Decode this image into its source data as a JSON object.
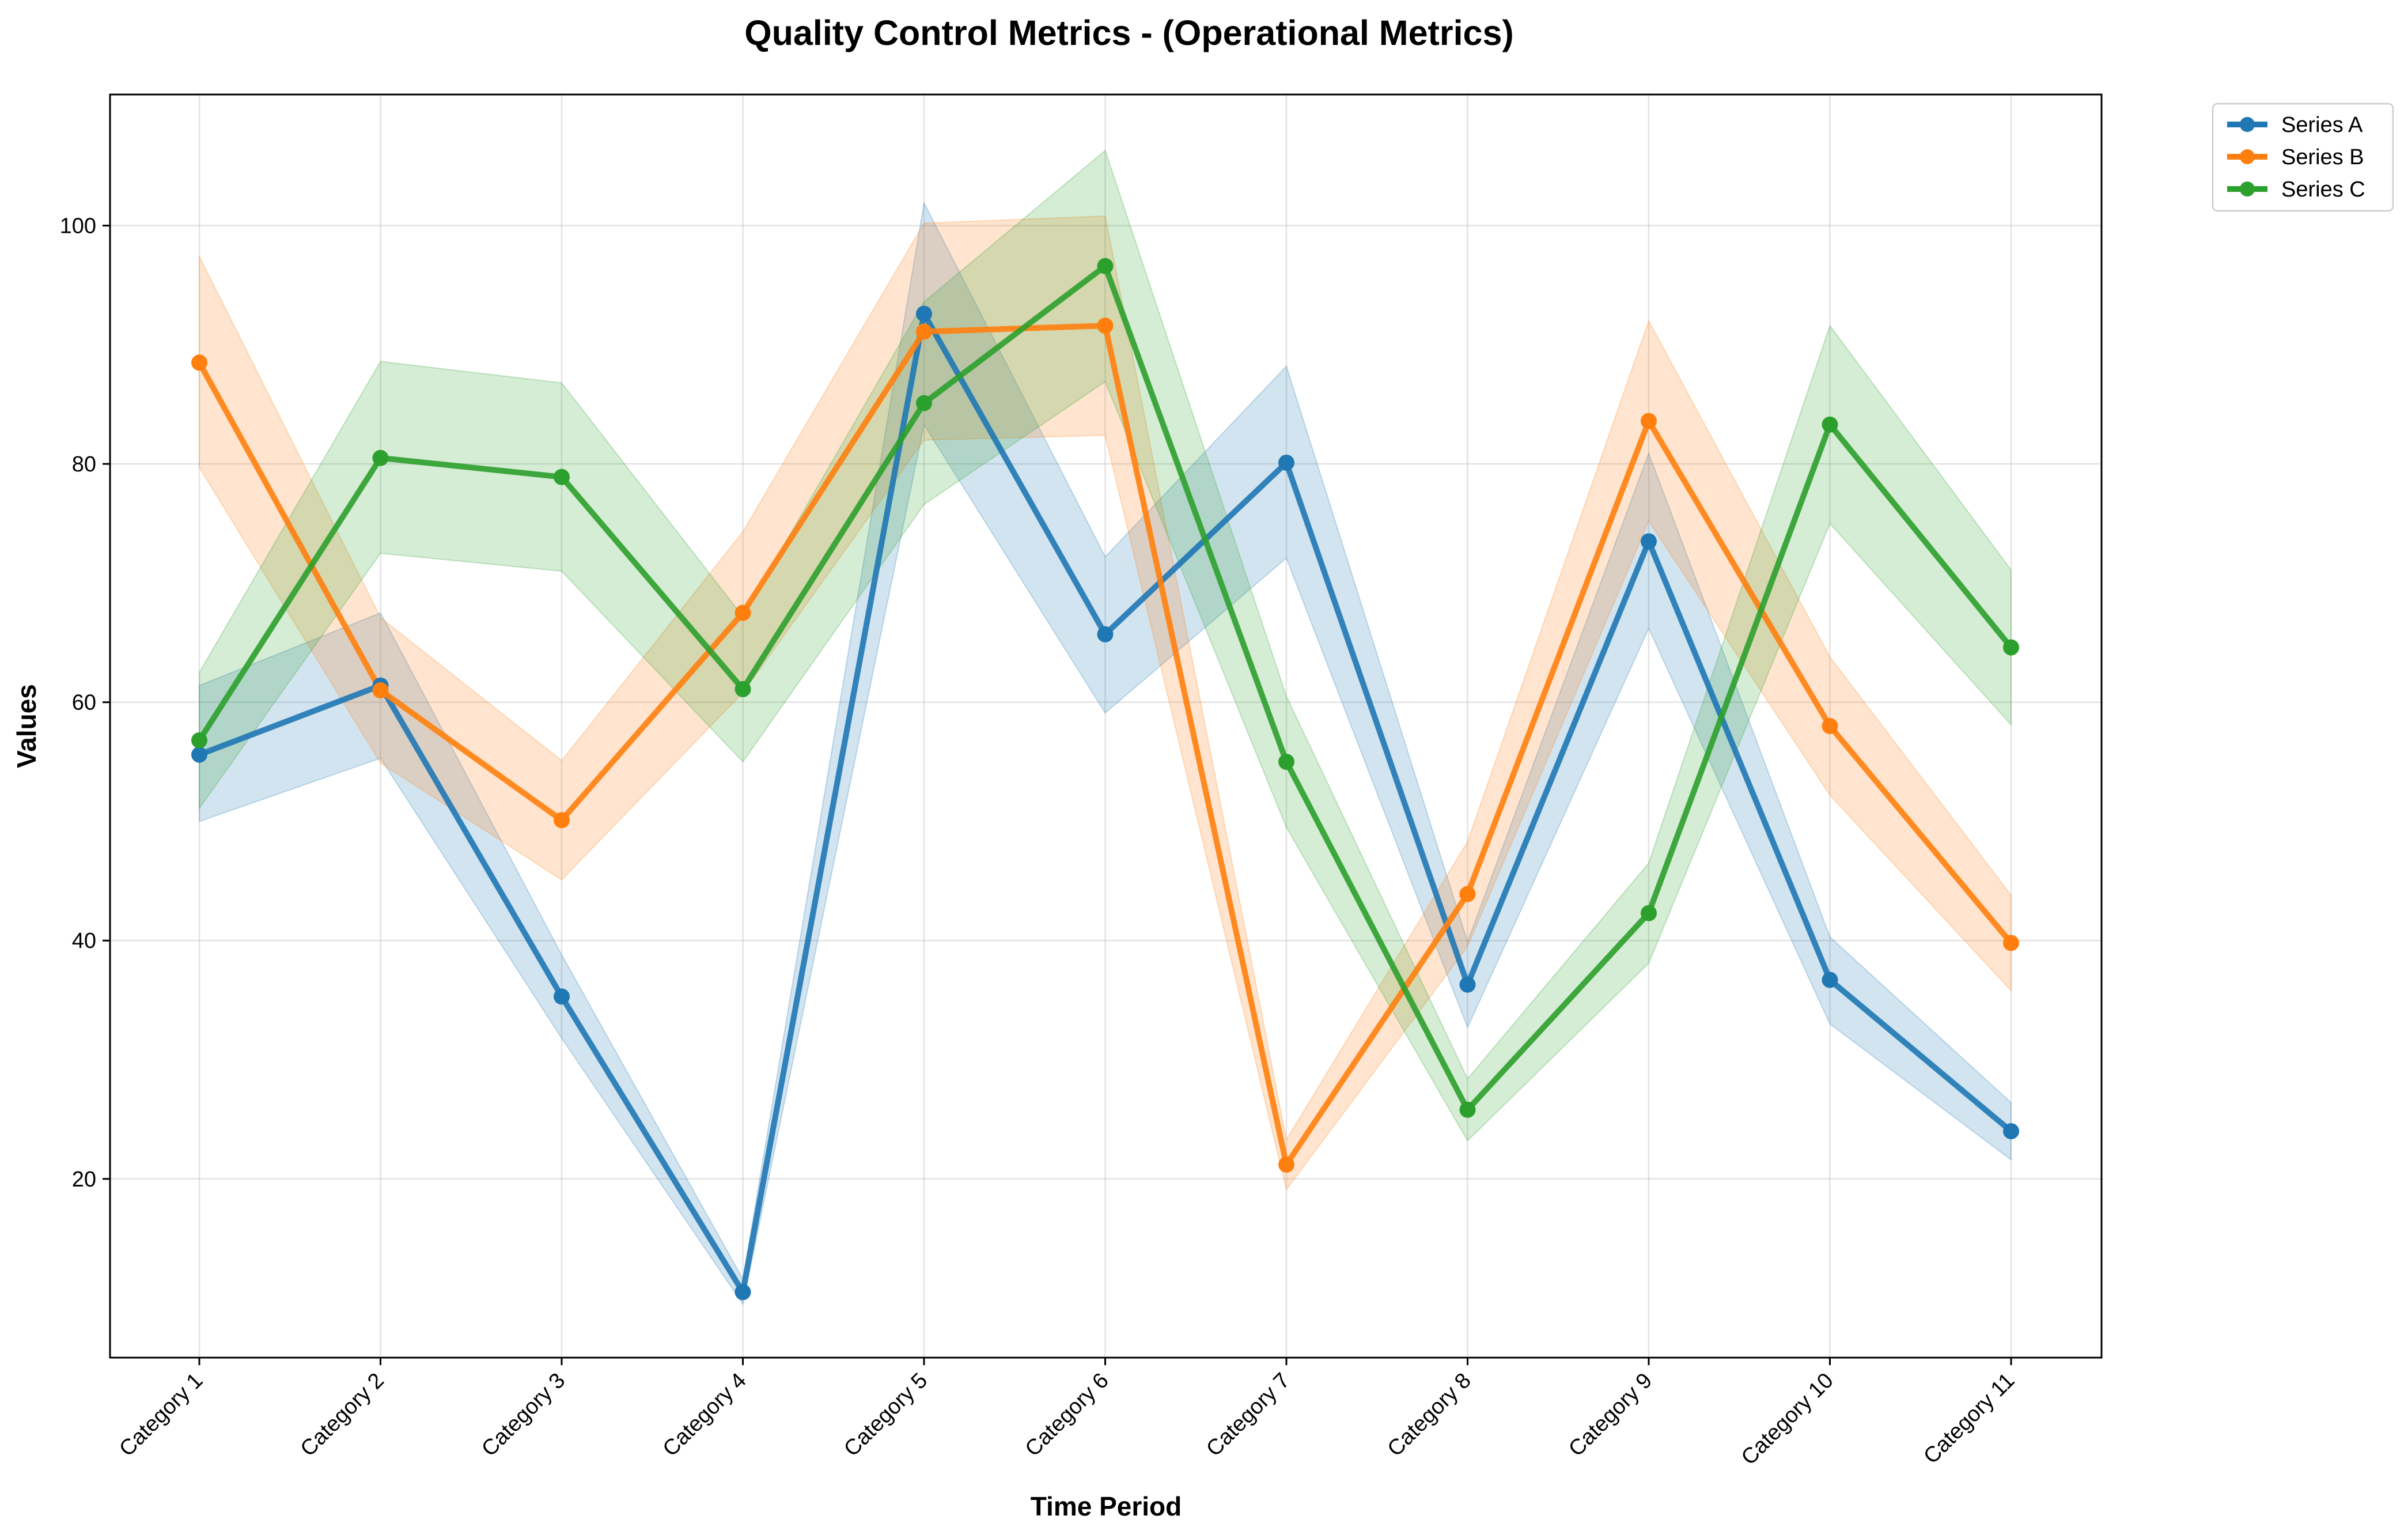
{
  "chart_data": {
    "type": "line",
    "title": "Quality Control Metrics - (Operational Metrics)",
    "xlabel": "Time Period",
    "ylabel": "Values",
    "categories": [
      "Category 1",
      "Category 2",
      "Category 3",
      "Category 4",
      "Category 5",
      "Category 6",
      "Category 7",
      "Category 8",
      "Category 9",
      "Category 10",
      "Category 11"
    ],
    "ylim": [
      5,
      111
    ],
    "yticks": [
      20,
      40,
      60,
      80,
      100
    ],
    "grid": true,
    "legend_position": "outside top-right",
    "series": [
      {
        "name": "Series A",
        "color": "#1f77b4",
        "values": [
          55.6,
          61.4,
          35.3,
          10.5,
          92.6,
          65.7,
          80.1,
          36.3,
          73.5,
          36.7,
          24.0
        ],
        "upper": [
          61.4,
          67.5,
          38.8,
          11.6,
          101.9,
          72.2,
          88.2,
          39.9,
          80.9,
          40.3,
          26.4
        ],
        "lower": [
          50.0,
          55.3,
          31.8,
          9.5,
          83.3,
          59.1,
          72.1,
          32.7,
          66.2,
          33.0,
          21.6
        ]
      },
      {
        "name": "Series B",
        "color": "#ff7f0e",
        "values": [
          88.5,
          61.0,
          50.1,
          67.5,
          91.1,
          91.6,
          21.2,
          43.9,
          83.6,
          58.0,
          39.8
        ],
        "upper": [
          97.4,
          67.1,
          55.1,
          74.3,
          100.2,
          100.8,
          23.3,
          48.3,
          92.0,
          63.8,
          43.8
        ],
        "lower": [
          79.7,
          54.9,
          45.1,
          60.8,
          82.0,
          82.4,
          19.1,
          39.5,
          75.2,
          52.2,
          35.8
        ]
      },
      {
        "name": "Series C",
        "color": "#2ca02c",
        "values": [
          56.8,
          80.5,
          78.9,
          61.1,
          85.1,
          96.6,
          55.0,
          25.8,
          42.3,
          83.3,
          64.6
        ],
        "upper": [
          62.5,
          88.6,
          86.8,
          67.2,
          93.6,
          106.3,
          60.5,
          28.4,
          46.5,
          91.6,
          71.1
        ],
        "lower": [
          51.1,
          72.5,
          71.0,
          55.0,
          76.6,
          86.9,
          49.5,
          23.2,
          38.1,
          75.0,
          58.1
        ]
      }
    ]
  }
}
